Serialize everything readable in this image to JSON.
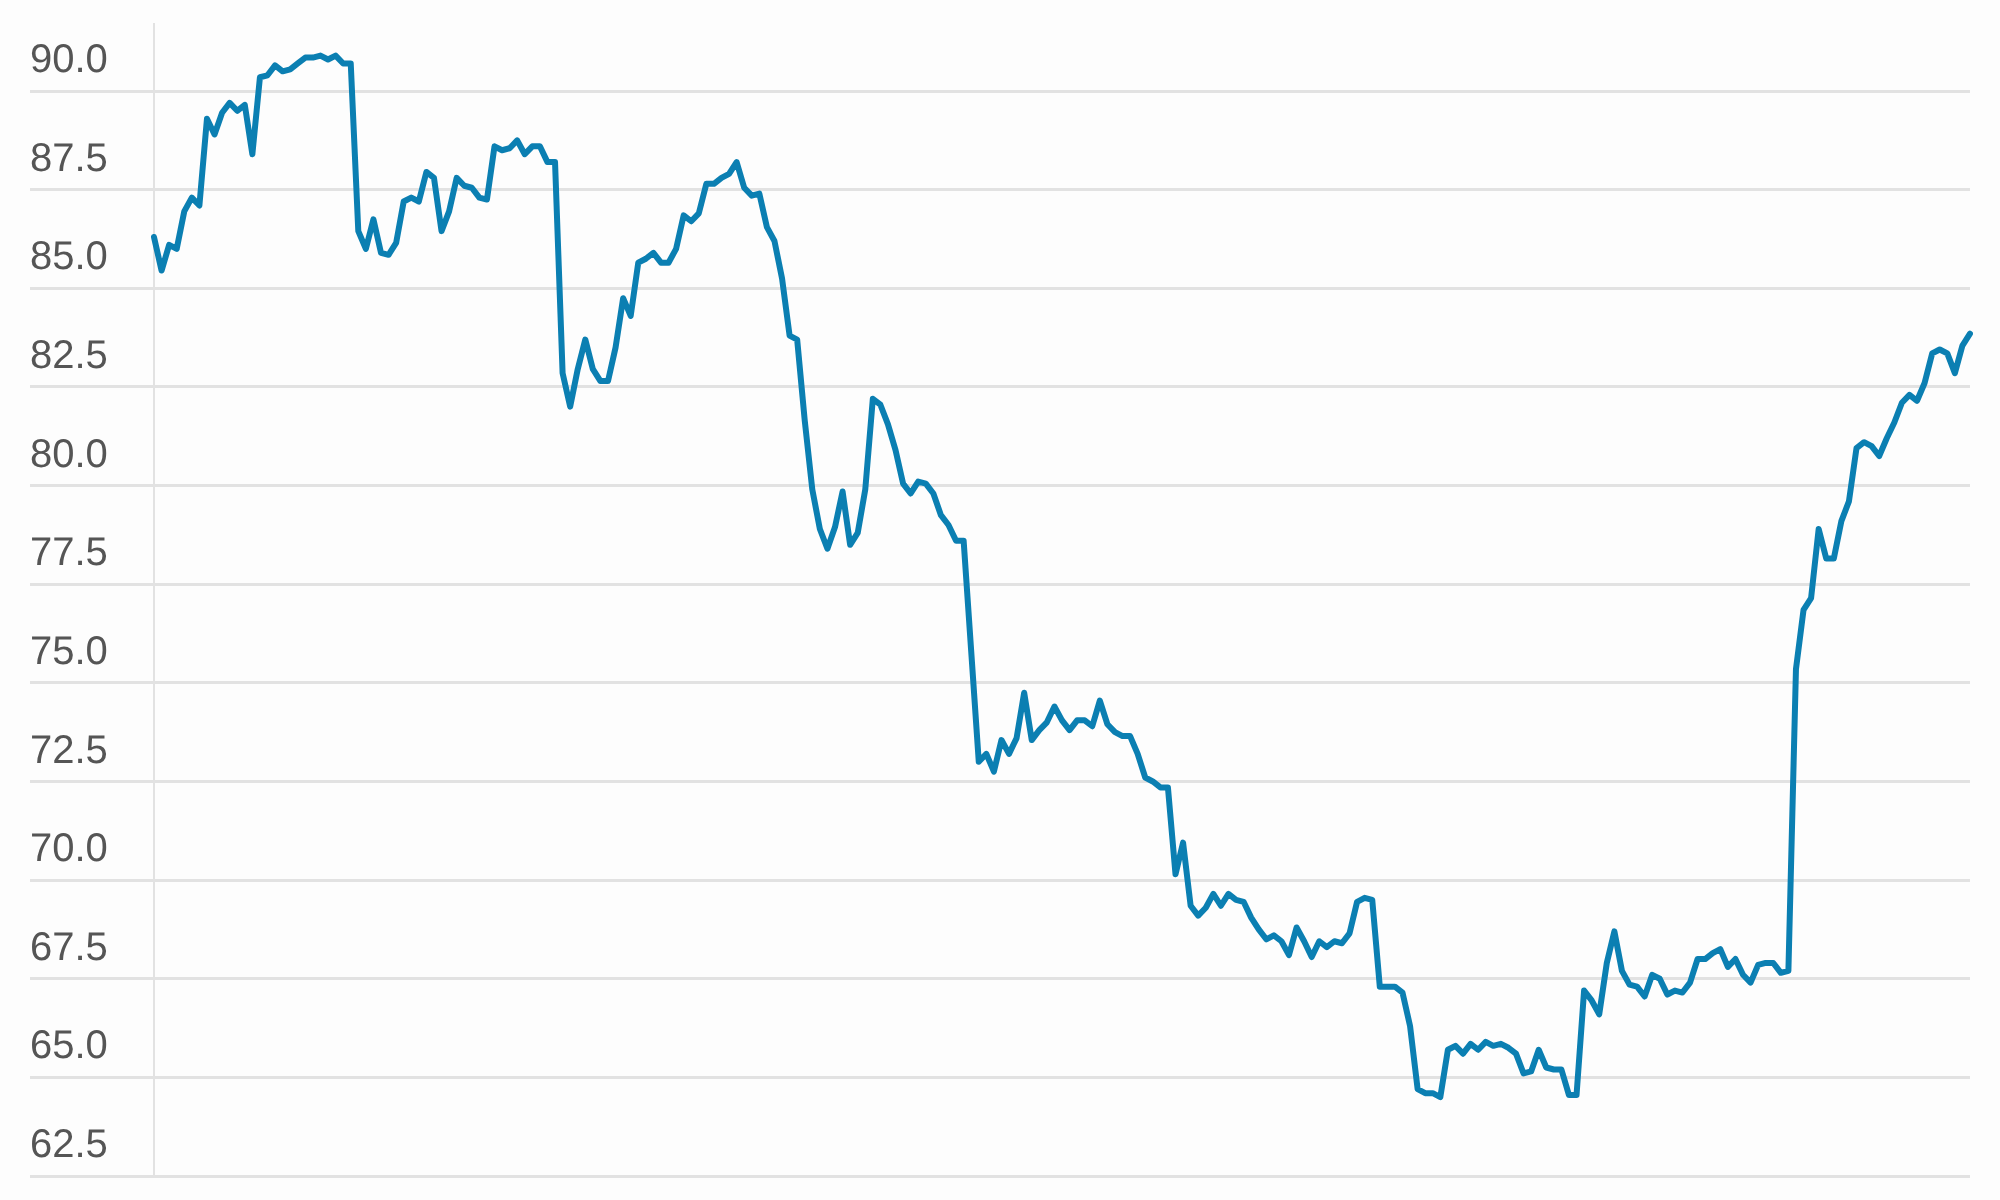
{
  "chart_data": {
    "type": "line",
    "categories": [
      null,
      null,
      null,
      null,
      null,
      null,
      null,
      null,
      null,
      null,
      null,
      null,
      null,
      null,
      null,
      null,
      null,
      null,
      null,
      null,
      null,
      null,
      null,
      null,
      null,
      null,
      null,
      null,
      null,
      null,
      null,
      null,
      null,
      null,
      null,
      null,
      null,
      null,
      null,
      null,
      null,
      null,
      null,
      null,
      null,
      null,
      null,
      null,
      null,
      null,
      null,
      null,
      null,
      null,
      null,
      null,
      null,
      null,
      null,
      null,
      null,
      null,
      null,
      null,
      null,
      null,
      null,
      null,
      null,
      null,
      null,
      null,
      null,
      null,
      null,
      null,
      null,
      null,
      null,
      null,
      null,
      null,
      null,
      null,
      null,
      null,
      null,
      null,
      null,
      null,
      null,
      null,
      null,
      null,
      null,
      null,
      null,
      null,
      null,
      null,
      null,
      null,
      null,
      null,
      null,
      null,
      null,
      null,
      null,
      null,
      null,
      null,
      null,
      null,
      null,
      null,
      null,
      null,
      null,
      null,
      null,
      null,
      null,
      null,
      null,
      null,
      null,
      null,
      null,
      null,
      null,
      null,
      null,
      null,
      null,
      null,
      null,
      null,
      null,
      null,
      null,
      null,
      null,
      null,
      null,
      null,
      null,
      null,
      null,
      null,
      null,
      null,
      null,
      null,
      null,
      null,
      null,
      null,
      null,
      null,
      null,
      null,
      null,
      null,
      null,
      null,
      null,
      null,
      null,
      null,
      null,
      null,
      null,
      null,
      null,
      null,
      null,
      null,
      null,
      null,
      null,
      null,
      null,
      null,
      null,
      null,
      null,
      null,
      null,
      null,
      null,
      null,
      null,
      null,
      null,
      null,
      null,
      null,
      null,
      null,
      null,
      null,
      null,
      null,
      null,
      null,
      null,
      null,
      null,
      null,
      null,
      null,
      null,
      null,
      null,
      null,
      null,
      null,
      null,
      null,
      null,
      null,
      null,
      null,
      null,
      null,
      null,
      null,
      null,
      null,
      null,
      null,
      null,
      null,
      null,
      null,
      null,
      null,
      null,
      null,
      null
    ],
    "series": [
      {
        "color": "#0b7fb2",
        "values": [
          86.3,
          85.45,
          86.1,
          86.0,
          86.95,
          87.3,
          87.1,
          89.3,
          88.9,
          89.45,
          89.7,
          89.5,
          89.65,
          88.4,
          90.35,
          90.4,
          90.65,
          90.5,
          90.55,
          90.7,
          90.85,
          90.85,
          90.9,
          90.8,
          90.9,
          90.7,
          90.7,
          86.45,
          86.0,
          86.75,
          85.9,
          85.85,
          86.15,
          87.2,
          87.3,
          87.2,
          87.95,
          87.8,
          86.45,
          86.95,
          87.8,
          87.6,
          87.55,
          87.3,
          87.25,
          88.6,
          88.5,
          88.55,
          88.75,
          88.4,
          88.6,
          88.6,
          88.2,
          88.2,
          82.85,
          82.0,
          82.95,
          83.7,
          82.95,
          82.65,
          82.65,
          83.5,
          84.75,
          84.3,
          85.65,
          85.75,
          85.9,
          85.65,
          85.65,
          86.0,
          86.85,
          86.7,
          86.9,
          87.65,
          87.65,
          87.8,
          87.9,
          88.2,
          87.55,
          87.35,
          87.4,
          86.55,
          86.2,
          85.25,
          83.8,
          83.7,
          81.65,
          79.9,
          78.9,
          78.4,
          78.95,
          79.85,
          78.5,
          78.8,
          79.9,
          82.2,
          82.05,
          81.55,
          80.9,
          80.05,
          79.8,
          80.1,
          80.05,
          79.8,
          79.25,
          79.0,
          78.6,
          78.6,
          75.8,
          73.0,
          73.2,
          72.75,
          73.55,
          73.2,
          73.6,
          74.75,
          73.55,
          73.8,
          74.0,
          74.4,
          74.05,
          73.8,
          74.05,
          74.05,
          73.9,
          74.55,
          73.95,
          73.75,
          73.65,
          73.65,
          73.2,
          72.6,
          72.5,
          72.35,
          72.35,
          70.15,
          70.95,
          69.35,
          69.1,
          69.3,
          69.65,
          69.35,
          69.65,
          69.5,
          69.45,
          69.05,
          68.75,
          68.5,
          68.6,
          68.45,
          68.1,
          68.8,
          68.45,
          68.05,
          68.45,
          68.3,
          68.45,
          68.4,
          68.65,
          69.45,
          69.55,
          69.5,
          67.3,
          67.3,
          67.3,
          67.15,
          66.3,
          64.7,
          64.6,
          64.6,
          64.5,
          65.7,
          65.8,
          65.6,
          65.85,
          65.7,
          65.9,
          65.8,
          65.85,
          65.75,
          65.6,
          65.1,
          65.15,
          65.7,
          65.25,
          65.2,
          65.2,
          64.55,
          64.55,
          67.2,
          66.95,
          66.6,
          67.9,
          68.7,
          67.7,
          67.35,
          67.3,
          67.05,
          67.6,
          67.5,
          67.1,
          67.2,
          67.15,
          67.4,
          68.0,
          68.0,
          68.15,
          68.25,
          67.8,
          68.0,
          67.6,
          67.4,
          67.85,
          67.9,
          67.9,
          67.65,
          67.7,
          75.35,
          76.85,
          77.15,
          78.9,
          78.15,
          78.15,
          79.1,
          79.6,
          80.95,
          81.1,
          81.0,
          80.75,
          81.2,
          81.6,
          82.1,
          82.3,
          82.15,
          82.6,
          83.35,
          83.45,
          83.35,
          82.85,
          83.55,
          83.85
        ]
      }
    ],
    "ylim": [
      62.5,
      91.7
    ],
    "yticks": [
      {
        "value": 62.5,
        "label": "62.5"
      },
      {
        "value": 65,
        "label": "65.0"
      },
      {
        "value": 67.5,
        "label": "67.5"
      },
      {
        "value": 70,
        "label": "70.0"
      },
      {
        "value": 72.5,
        "label": "72.5"
      },
      {
        "value": 75,
        "label": "75.0"
      },
      {
        "value": 77.5,
        "label": "77.5"
      },
      {
        "value": 80,
        "label": "80.0"
      },
      {
        "value": 82.5,
        "label": "82.5"
      },
      {
        "value": 85,
        "label": "85.0"
      },
      {
        "value": 87.5,
        "label": "87.5"
      },
      {
        "value": 90,
        "label": "90.0"
      }
    ],
    "grid": "y",
    "legend": false,
    "marker": "none",
    "line_style": "solid",
    "tick_labels": "y"
  }
}
